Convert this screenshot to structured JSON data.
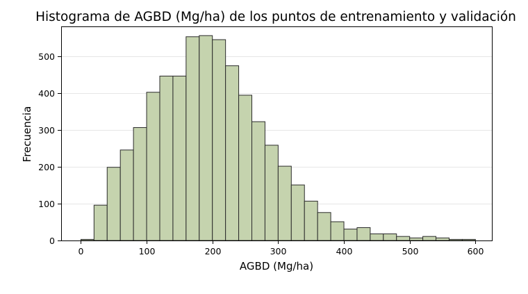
{
  "chart_data": {
    "type": "bar",
    "title": "Histograma de AGBD (Mg/ha) de los puntos de entrenamiento y validación",
    "xlabel": "AGBD (Mg/ha)",
    "ylabel": "Frecuencia",
    "xlim": [
      -30,
      625
    ],
    "ylim": [
      0,
      582
    ],
    "xticks": [
      0,
      100,
      200,
      300,
      400,
      500,
      600
    ],
    "yticks": [
      0,
      100,
      200,
      300,
      400,
      500
    ],
    "grid": "y",
    "bin_width": 20,
    "bins": [
      {
        "start": 0,
        "value": 3
      },
      {
        "start": 20,
        "value": 96
      },
      {
        "start": 40,
        "value": 199
      },
      {
        "start": 60,
        "value": 246
      },
      {
        "start": 80,
        "value": 307
      },
      {
        "start": 100,
        "value": 403
      },
      {
        "start": 120,
        "value": 447
      },
      {
        "start": 140,
        "value": 447
      },
      {
        "start": 160,
        "value": 554
      },
      {
        "start": 180,
        "value": 557
      },
      {
        "start": 200,
        "value": 546
      },
      {
        "start": 220,
        "value": 475
      },
      {
        "start": 240,
        "value": 395
      },
      {
        "start": 260,
        "value": 323
      },
      {
        "start": 280,
        "value": 259
      },
      {
        "start": 300,
        "value": 202
      },
      {
        "start": 320,
        "value": 151
      },
      {
        "start": 340,
        "value": 107
      },
      {
        "start": 360,
        "value": 76
      },
      {
        "start": 380,
        "value": 51
      },
      {
        "start": 400,
        "value": 31
      },
      {
        "start": 420,
        "value": 35
      },
      {
        "start": 440,
        "value": 18
      },
      {
        "start": 460,
        "value": 18
      },
      {
        "start": 480,
        "value": 11
      },
      {
        "start": 500,
        "value": 7
      },
      {
        "start": 520,
        "value": 11
      },
      {
        "start": 540,
        "value": 7
      },
      {
        "start": 560,
        "value": 3
      },
      {
        "start": 580,
        "value": 3
      }
    ],
    "bar_color": "#c5d3ae",
    "edge_color": "#2b2b2b",
    "grid_color": "#e6e6e6"
  }
}
